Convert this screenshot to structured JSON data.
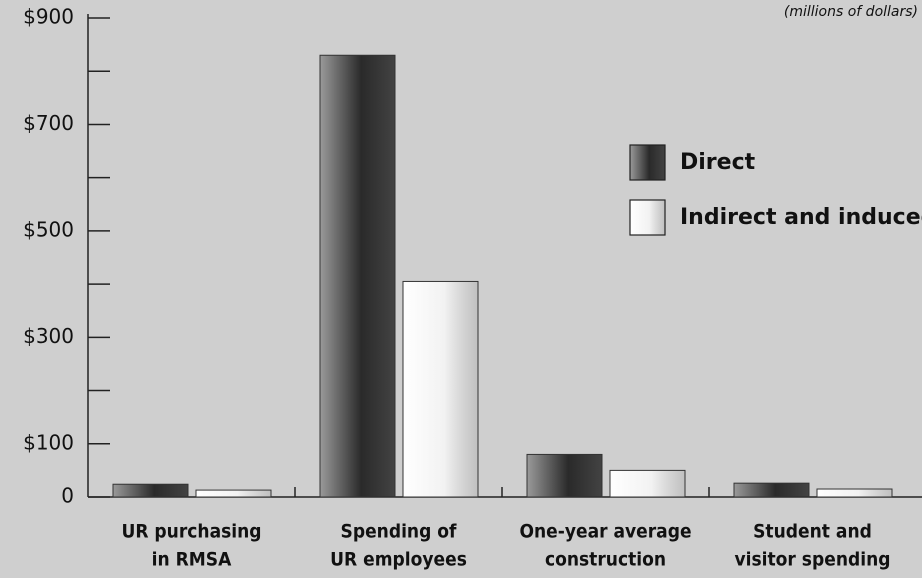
{
  "chart_data": {
    "type": "bar",
    "unit_note": "(millions of dollars)",
    "categories": [
      [
        "UR purchasing",
        "in RMSA"
      ],
      [
        "Spending of",
        "UR employees"
      ],
      [
        "One-year average",
        "construction"
      ],
      [
        "Student and",
        "visitor spending"
      ]
    ],
    "series": [
      {
        "name": "Direct",
        "color": "#2a2a2a",
        "values": [
          24,
          830,
          80,
          26
        ]
      },
      {
        "name": "Indirect and induced",
        "color": "#f2f2f2",
        "values": [
          13,
          405,
          50,
          15
        ]
      }
    ],
    "ylim": [
      0,
      900
    ],
    "yticks": [
      {
        "value": 900,
        "label": "$900"
      },
      {
        "value": 700,
        "label": "$700"
      },
      {
        "value": 500,
        "label": "$500"
      },
      {
        "value": 300,
        "label": "$300"
      },
      {
        "value": 100,
        "label": "$100"
      },
      0
    ],
    "minor_yticks": [
      800,
      600,
      400,
      200
    ],
    "legend": "upper right"
  }
}
